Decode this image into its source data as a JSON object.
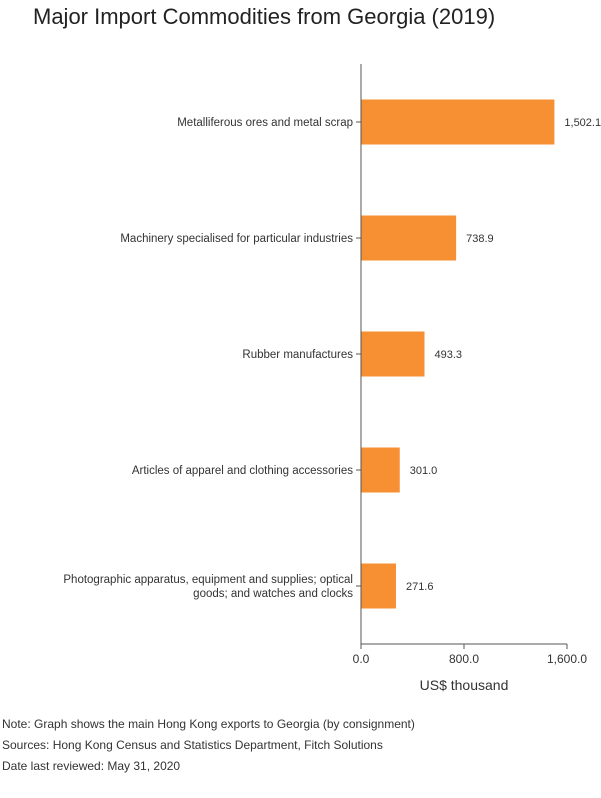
{
  "title": "Major Import Commodities from Georgia (2019)",
  "chart_data": {
    "type": "bar",
    "orientation": "horizontal",
    "categories": [
      "Metalliferous ores and metal scrap",
      "Machinery specialised for particular industries",
      "Rubber manufactures",
      "Articles of apparel and clothing accessories",
      "Photographic apparatus, equipment and supplies; optical goods; and watches and clocks"
    ],
    "category_lines": [
      [
        "Metalliferous ores and metal scrap"
      ],
      [
        "Machinery specialised for particular industries"
      ],
      [
        "Rubber manufactures"
      ],
      [
        "Articles of apparel and clothing accessories"
      ],
      [
        "Photographic apparatus, equipment and supplies; optical",
        "goods; and watches and clocks"
      ]
    ],
    "values": [
      1502.1,
      738.9,
      493.3,
      301.0,
      271.6
    ],
    "value_labels": [
      "1,502.1",
      "738.9",
      "493.3",
      "301.0",
      "271.6"
    ],
    "xlabel": "US$ thousand",
    "ylabel": "",
    "xlim": [
      0,
      1600
    ],
    "ticks": [
      0,
      800,
      1600
    ],
    "tick_labels": [
      "0.0",
      "800.0",
      "1,600.0"
    ],
    "grid": false,
    "colors": {
      "bar": "#F78F33",
      "axis": "#555555"
    }
  },
  "notes": {
    "note": "Note: Graph shows the main Hong Kong exports to Georgia (by consignment)",
    "sources": "Sources: Hong Kong Census and Statistics Department, Fitch Solutions",
    "reviewed": "Date last reviewed: May 31, 2020"
  }
}
